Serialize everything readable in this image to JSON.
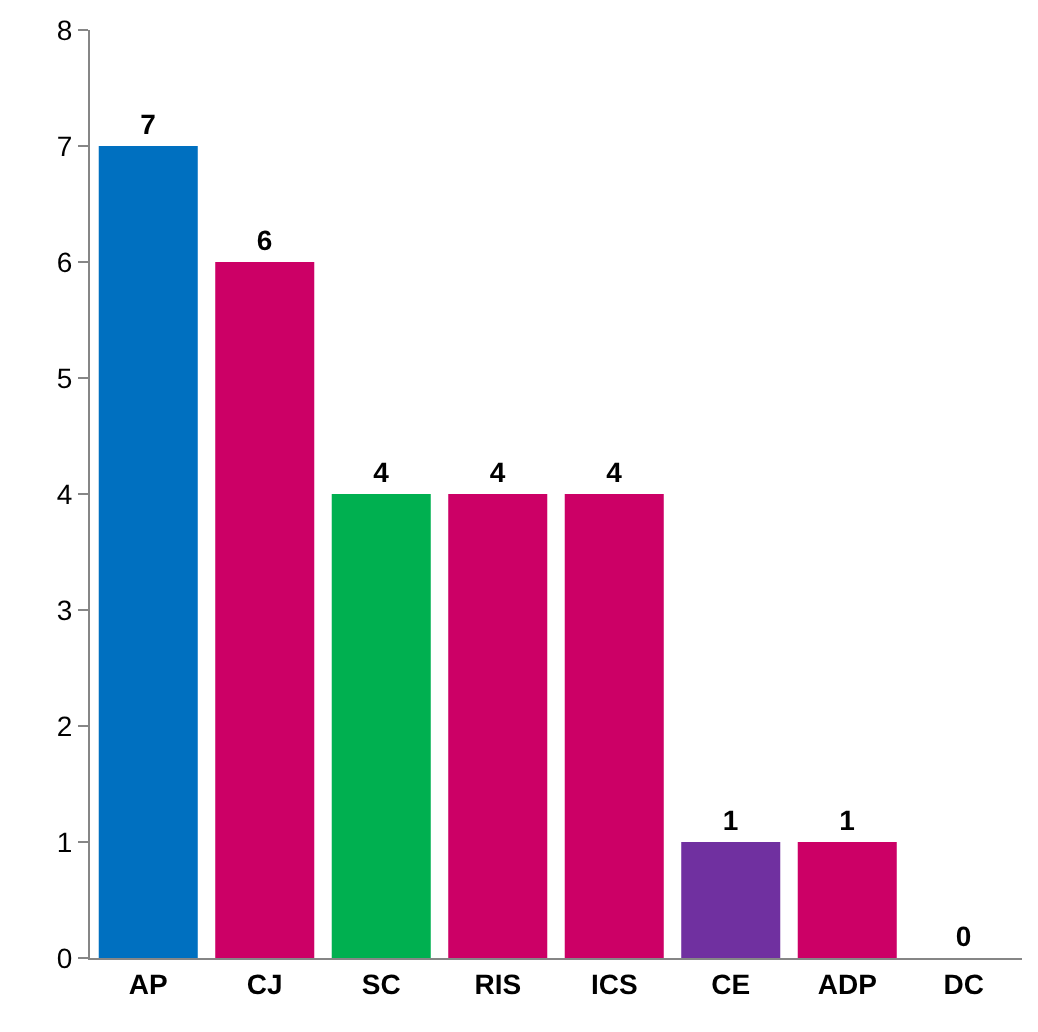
{
  "chart_data": {
    "type": "bar",
    "categories": [
      "AP",
      "CJ",
      "SC",
      "RIS",
      "ICS",
      "CE",
      "ADP",
      "DC"
    ],
    "values": [
      7,
      6,
      4,
      4,
      4,
      1,
      1,
      0
    ],
    "colors": [
      "#0070c0",
      "#cc0066",
      "#00b050",
      "#cc0066",
      "#cc0066",
      "#7030a0",
      "#cc0066",
      "#cc0066"
    ],
    "ylim": [
      0,
      8
    ],
    "yticks": [
      0,
      1,
      2,
      3,
      4,
      5,
      6,
      7,
      8
    ],
    "grid": false,
    "data_labels": true
  }
}
